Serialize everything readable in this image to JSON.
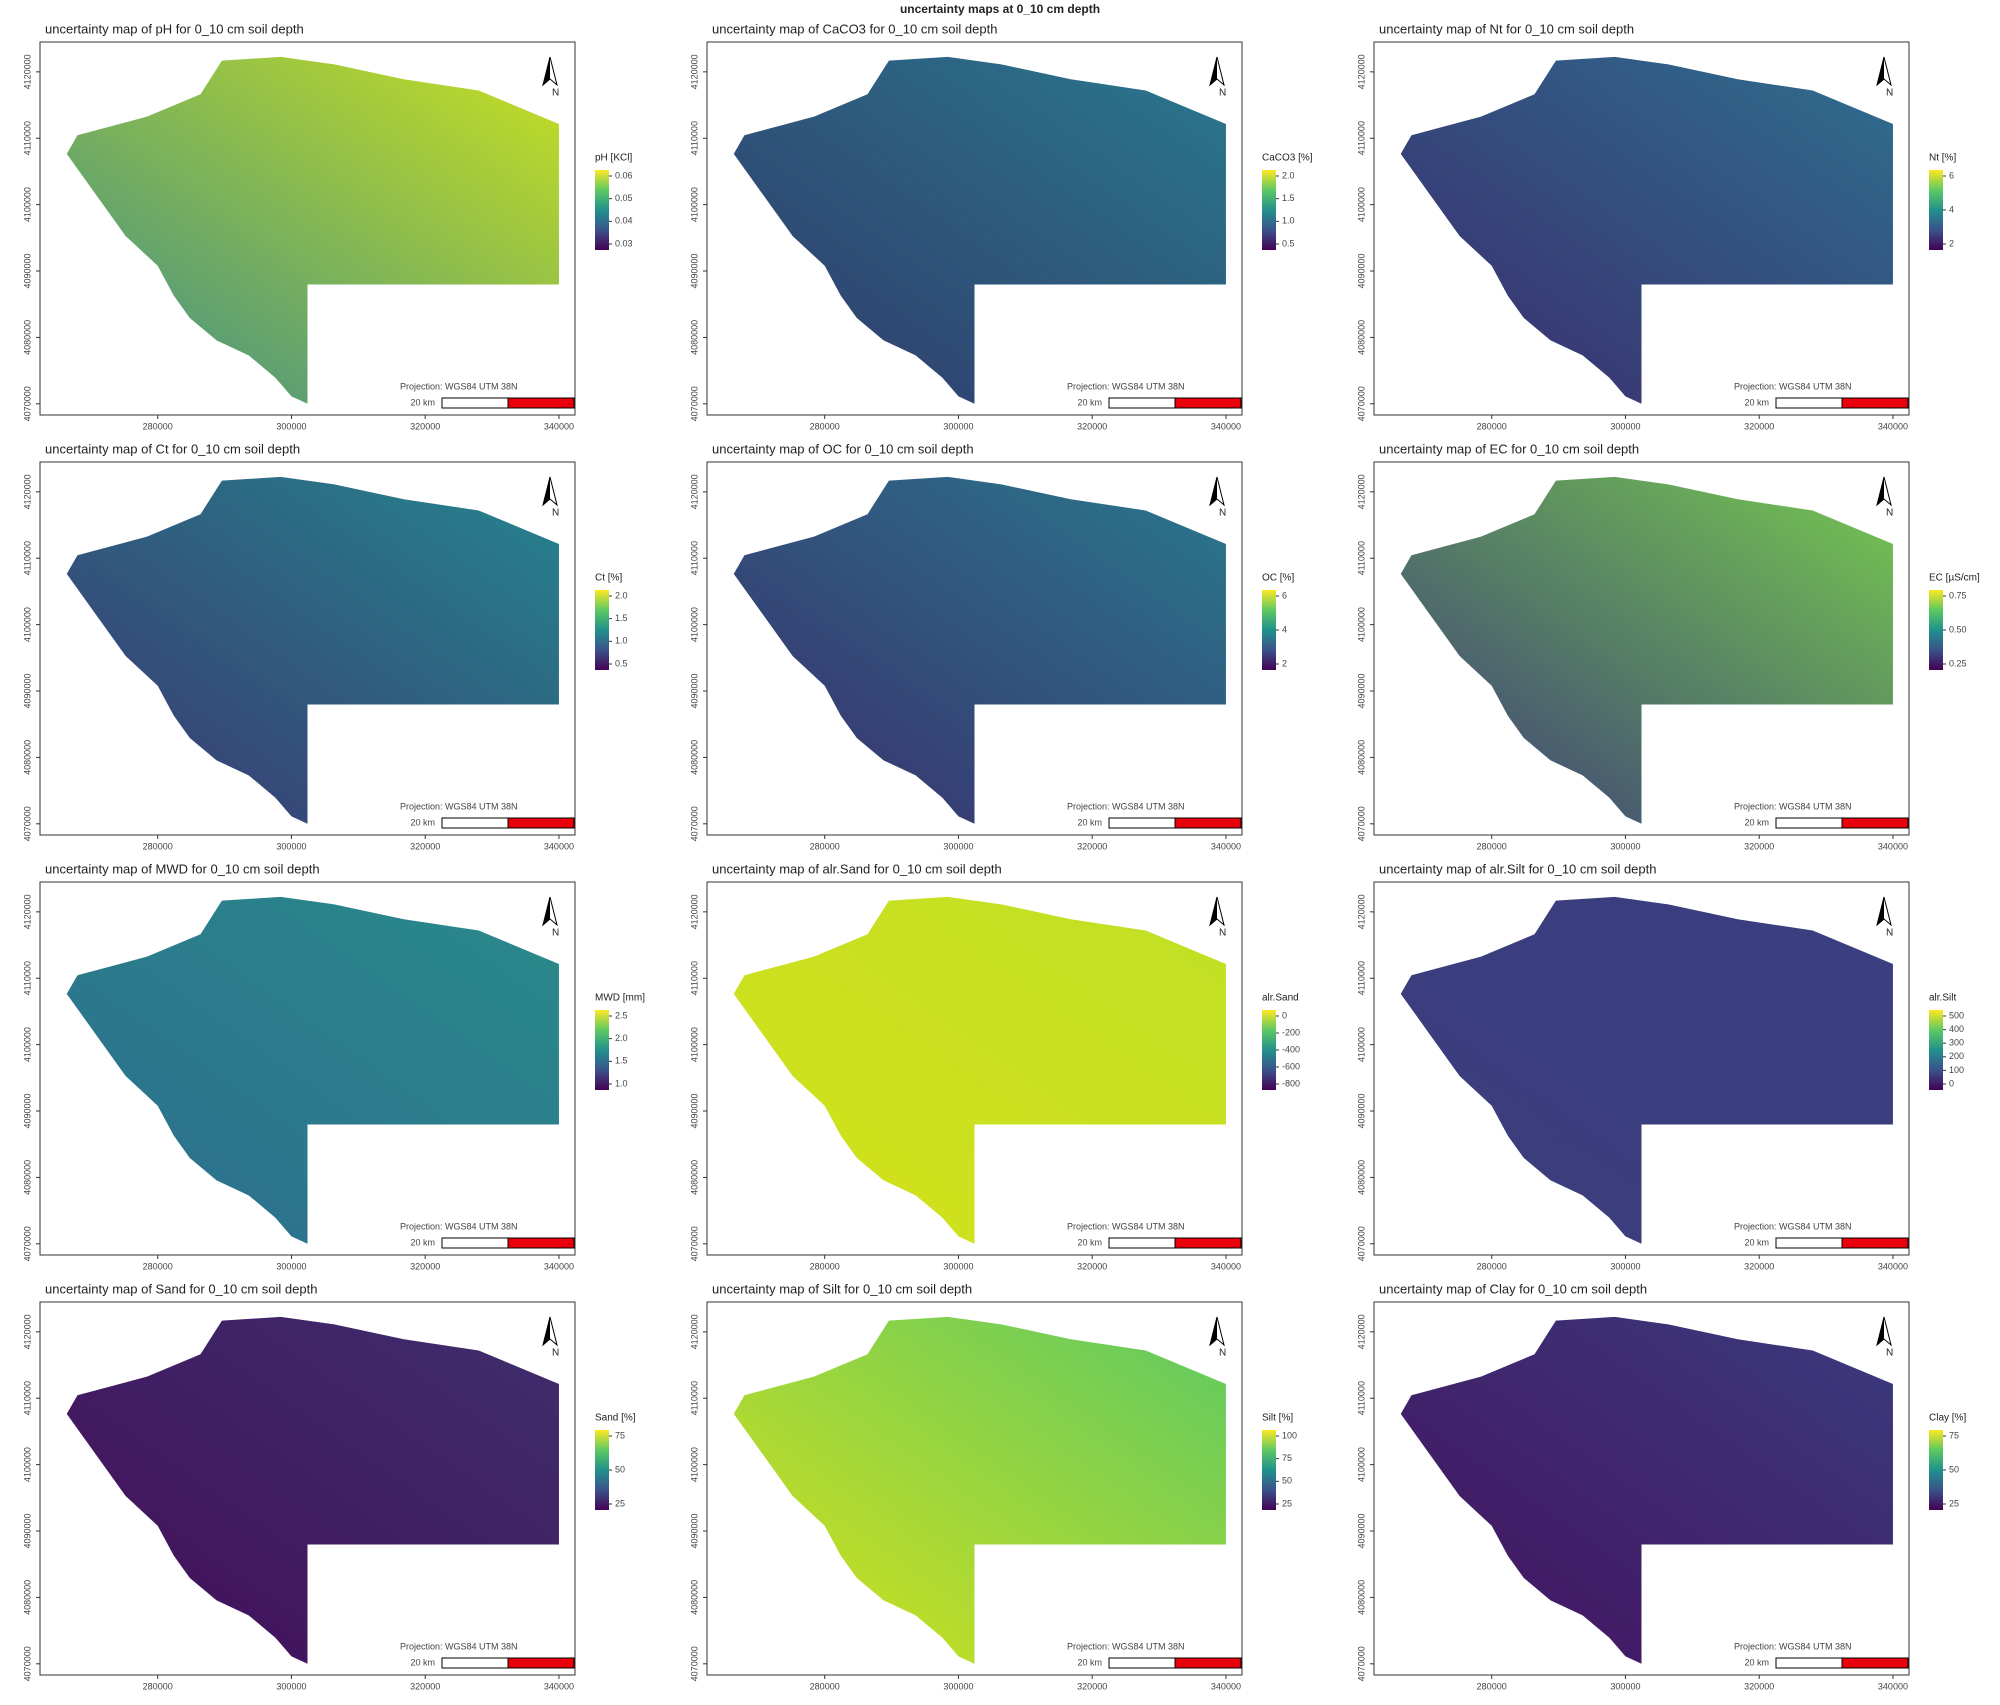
{
  "title": "uncertainty maps at 0_10 cm depth",
  "projection": "Projection: WGS84 UTM 38N",
  "scale_label": "20 km",
  "north": "N",
  "x_ticks": [
    "280000",
    "300000",
    "320000",
    "340000"
  ],
  "y_ticks": [
    "4120000",
    "4110000",
    "4100000",
    "4090000",
    "4080000",
    "4070000"
  ],
  "panels": [
    {
      "title": "uncertainty map of pH for 0_10 cm soil depth",
      "legend_title": "pH [KCl]",
      "legend_ticks": [
        "0.06",
        "0.05",
        "0.04",
        "0.03"
      ],
      "map_colors": [
        "#3b8b8c",
        "#c8e020"
      ]
    },
    {
      "title": "uncertainty map of CaCO3 for 0_10 cm soil depth",
      "legend_title": "CaCO3 [%]",
      "legend_ticks": [
        "2.0",
        "1.5",
        "1.0",
        "0.5"
      ],
      "map_colors": [
        "#31386a",
        "#2a788e"
      ]
    },
    {
      "title": "uncertainty map of Nt for 0_10 cm soil depth",
      "legend_title": "Nt [%]",
      "legend_ticks": [
        "6",
        "4",
        "2"
      ],
      "map_colors": [
        "#3b2a6e",
        "#2e6f8e"
      ]
    },
    {
      "title": "uncertainty map of Ct for 0_10 cm soil depth",
      "legend_title": "Ct [%]",
      "legend_ticks": [
        "2.0",
        "1.5",
        "1.0",
        "0.5"
      ],
      "map_colors": [
        "#3b3570",
        "#25858e"
      ]
    },
    {
      "title": "uncertainty map of OC for 0_10 cm soil depth",
      "legend_title": "OC [%]",
      "legend_ticks": [
        "6",
        "4",
        "2"
      ],
      "map_colors": [
        "#3a2d6c",
        "#2a788e"
      ]
    },
    {
      "title": "uncertainty map of EC for 0_10 cm soil depth",
      "legend_title": "EC [µS/cm]",
      "legend_ticks": [
        "0.75",
        "0.50",
        "0.25"
      ],
      "map_colors": [
        "#3b3a7a",
        "#75c850"
      ]
    },
    {
      "title": "uncertainty map of MWD for 0_10 cm soil depth",
      "legend_title": "MWD [mm]",
      "legend_ticks": [
        "2.5",
        "2.0",
        "1.5",
        "1.0"
      ],
      "map_colors": [
        "#2c6d8e",
        "#2a8a8a"
      ]
    },
    {
      "title": "uncertainty map of alr.Sand for 0_10 cm soil depth",
      "legend_title": "alr.Sand",
      "legend_ticks": [
        "0",
        "-200",
        "-400",
        "-600",
        "-800"
      ],
      "map_colors": [
        "#d4e21a",
        "#c0df25"
      ]
    },
    {
      "title": "uncertainty map of alr.Silt for 0_10 cm soil depth",
      "legend_title": "alr.Silt",
      "legend_ticks": [
        "500",
        "400",
        "300",
        "200",
        "100",
        "0"
      ],
      "map_colors": [
        "#3b3c7c",
        "#3a3f80"
      ]
    },
    {
      "title": "uncertainty map of Sand for 0_10 cm soil depth",
      "legend_title": "Sand [%]",
      "legend_ticks": [
        "75",
        "50",
        "25"
      ],
      "map_colors": [
        "#440e5a",
        "#3e2e6d"
      ]
    },
    {
      "title": "uncertainty map of Silt for 0_10 cm soil depth",
      "legend_title": "Silt [%]",
      "legend_ticks": [
        "100",
        "75",
        "50",
        "25"
      ],
      "map_colors": [
        "#d8e219",
        "#5ec962"
      ]
    },
    {
      "title": "uncertainty map of Clay for 0_10 cm soil depth",
      "legend_title": "Clay [%]",
      "legend_ticks": [
        "75",
        "50",
        "25"
      ],
      "map_colors": [
        "#45115e",
        "#3a3b7d"
      ]
    }
  ]
}
